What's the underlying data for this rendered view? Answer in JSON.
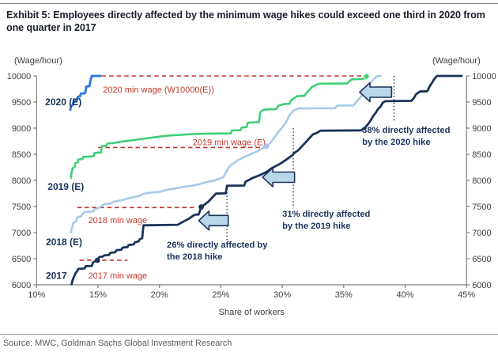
{
  "page": {
    "title": "Exhibit 5: Employees directly affected by the minimum wage hikes could exceed one third in 2020 from one quarter in 2017",
    "source": "Source: MWC, Goldman Sachs Global Investment Research"
  },
  "axes": {
    "left_title": "(Wage/hour)",
    "right_title": "(Wage/hour)",
    "x_title": "Share of workers",
    "y_ticks": [
      10000,
      9500,
      9000,
      8500,
      8000,
      7500,
      7000,
      6500,
      6000
    ],
    "x_ticks": [
      "10%",
      "15%",
      "20%",
      "25%",
      "30%",
      "35%",
      "40%",
      "45%"
    ],
    "x_range": [
      10,
      45
    ],
    "y_range": [
      6000,
      10000
    ],
    "grid": false
  },
  "colors": {
    "line_2020": "#2e7ce0",
    "line_2019": "#3ecf77",
    "line_2018": "#a6c9e8",
    "line_2017": "#1b3259",
    "min_wage_red": "#c0392b",
    "arrow_fill": "#b9d7ea",
    "axis_gray": "#7f7f7f",
    "tick_text": "#404040",
    "annotation_navy": "#1b3259"
  },
  "chart_data": {
    "type": "line",
    "x_unit": "share of workers (%)",
    "y_unit": "hourly wage (W, Korean won)",
    "series": [
      {
        "name": "2020 (E)",
        "color": "#2e7ce0",
        "width": 3,
        "label": {
          "text": "2020 (E)",
          "x": 10.7,
          "wage": 9440
        },
        "points": [
          [
            12.75,
            9350
          ],
          [
            12.8,
            9430
          ],
          [
            12.95,
            9440
          ],
          [
            13.0,
            9500
          ],
          [
            13.3,
            9540
          ],
          [
            13.35,
            9600
          ],
          [
            13.55,
            9610
          ],
          [
            13.6,
            9660
          ],
          [
            13.95,
            9670
          ],
          [
            14.0,
            9730
          ],
          [
            14.05,
            9795
          ],
          [
            14.3,
            9805
          ],
          [
            14.35,
            9865
          ],
          [
            14.4,
            9930
          ],
          [
            14.5,
            10000
          ],
          [
            15.2,
            10000
          ]
        ]
      },
      {
        "name": "2019 (E)",
        "color": "#3ecf77",
        "width": 2.6,
        "label": {
          "text": "2019 (E)",
          "x": 10.9,
          "wage": 7820
        },
        "points": [
          [
            12.8,
            8050
          ],
          [
            12.85,
            8160
          ],
          [
            12.95,
            8235
          ],
          [
            13.1,
            8255
          ],
          [
            13.15,
            8330
          ],
          [
            13.35,
            8345
          ],
          [
            13.4,
            8400
          ],
          [
            13.75,
            8410
          ],
          [
            13.8,
            8450
          ],
          [
            14.65,
            8460
          ],
          [
            14.7,
            8525
          ],
          [
            15.25,
            8535
          ],
          [
            15.3,
            8655
          ],
          [
            15.7,
            8665
          ],
          [
            15.75,
            8705
          ],
          [
            16.3,
            8715
          ],
          [
            16.7,
            8735
          ],
          [
            17.3,
            8755
          ],
          [
            18.0,
            8775
          ],
          [
            18.6,
            8795
          ],
          [
            19.3,
            8815
          ],
          [
            19.9,
            8835
          ],
          [
            20.6,
            8855
          ],
          [
            21.2,
            8865
          ],
          [
            21.9,
            8875
          ],
          [
            22.5,
            8885
          ],
          [
            24.0,
            8895
          ],
          [
            25.8,
            8900
          ],
          [
            25.9,
            8955
          ],
          [
            26.6,
            8962
          ],
          [
            26.7,
            9012
          ],
          [
            27.1,
            9020
          ],
          [
            27.2,
            9105
          ],
          [
            28.1,
            9115
          ],
          [
            28.2,
            9305
          ],
          [
            28.5,
            9355
          ],
          [
            29.5,
            9365
          ],
          [
            29.7,
            9432
          ],
          [
            30.1,
            9460
          ],
          [
            30.6,
            9467
          ],
          [
            30.7,
            9532
          ],
          [
            31.0,
            9580
          ],
          [
            31.2,
            9612
          ],
          [
            31.8,
            9618
          ],
          [
            32.0,
            9685
          ],
          [
            32.2,
            9732
          ],
          [
            32.4,
            9785
          ],
          [
            32.7,
            9822
          ],
          [
            33.0,
            9852
          ],
          [
            35.3,
            9857
          ],
          [
            35.5,
            9912
          ],
          [
            35.7,
            9937
          ],
          [
            36.6,
            9942
          ],
          [
            36.85,
            9990
          ]
        ]
      },
      {
        "name": "2018 (E)",
        "color": "#a6c9e8",
        "width": 2.6,
        "label": {
          "text": "2018 (E)",
          "x": 10.75,
          "wage": 6760
        },
        "points": [
          [
            12.8,
            7000
          ],
          [
            12.9,
            7112
          ],
          [
            13.0,
            7190
          ],
          [
            13.2,
            7212
          ],
          [
            13.3,
            7290
          ],
          [
            13.6,
            7312
          ],
          [
            13.9,
            7395
          ],
          [
            14.6,
            7405
          ],
          [
            14.7,
            7440
          ],
          [
            15.0,
            7470
          ],
          [
            15.25,
            7498
          ],
          [
            15.35,
            7518
          ],
          [
            15.5,
            7540
          ],
          [
            16.0,
            7556
          ],
          [
            16.3,
            7592
          ],
          [
            17.0,
            7622
          ],
          [
            17.6,
            7665
          ],
          [
            18.3,
            7697
          ],
          [
            18.7,
            7742
          ],
          [
            19.4,
            7770
          ],
          [
            20.0,
            7778
          ],
          [
            20.6,
            7820
          ],
          [
            21.3,
            7846
          ],
          [
            21.9,
            7872
          ],
          [
            22.6,
            7897
          ],
          [
            23.2,
            7922
          ],
          [
            23.9,
            7972
          ],
          [
            24.5,
            7997
          ],
          [
            25.2,
            8062
          ],
          [
            25.7,
            8272
          ],
          [
            26.0,
            8322
          ],
          [
            26.5,
            8402
          ],
          [
            27.0,
            8457
          ],
          [
            27.5,
            8507
          ],
          [
            28.0,
            8562
          ],
          [
            28.7,
            8652
          ],
          [
            29.0,
            8712
          ],
          [
            29.3,
            8802
          ],
          [
            29.6,
            8902
          ],
          [
            30.0,
            9012
          ],
          [
            30.3,
            9112
          ],
          [
            30.6,
            9252
          ],
          [
            30.9,
            9332
          ],
          [
            31.3,
            9377
          ],
          [
            34.3,
            9382
          ],
          [
            34.5,
            9432
          ],
          [
            35.8,
            9437
          ],
          [
            36.1,
            9522
          ],
          [
            36.4,
            9602
          ],
          [
            36.7,
            9702
          ],
          [
            37.0,
            9802
          ],
          [
            37.3,
            9902
          ],
          [
            37.7,
            9995
          ],
          [
            38.0,
            10000
          ]
        ]
      },
      {
        "name": "2017",
        "color": "#1b3259",
        "width": 2.8,
        "label": {
          "text": "2017",
          "x": 10.75,
          "wage": 6110
        },
        "points": [
          [
            12.85,
            6010
          ],
          [
            12.9,
            6062
          ],
          [
            13.0,
            6132
          ],
          [
            13.1,
            6182
          ],
          [
            13.2,
            6232
          ],
          [
            13.3,
            6262
          ],
          [
            13.4,
            6305
          ],
          [
            13.9,
            6312
          ],
          [
            14.0,
            6357
          ],
          [
            14.5,
            6362
          ],
          [
            14.6,
            6432
          ],
          [
            14.95,
            6470
          ],
          [
            15.1,
            6532
          ],
          [
            15.4,
            6542
          ],
          [
            15.5,
            6562
          ],
          [
            15.9,
            6572
          ],
          [
            16.0,
            6612
          ],
          [
            16.4,
            6622
          ],
          [
            16.5,
            6662
          ],
          [
            16.9,
            6672
          ],
          [
            17.0,
            6712
          ],
          [
            17.4,
            6722
          ],
          [
            17.5,
            6762
          ],
          [
            17.9,
            6772
          ],
          [
            18.0,
            6812
          ],
          [
            18.3,
            6832
          ],
          [
            18.4,
            6872
          ],
          [
            18.6,
            6892
          ],
          [
            18.7,
            7140
          ],
          [
            21.5,
            7150
          ],
          [
            21.6,
            7167
          ],
          [
            22.0,
            7217
          ],
          [
            22.4,
            7267
          ],
          [
            22.7,
            7317
          ],
          [
            22.9,
            7342
          ],
          [
            23.2,
            7347
          ],
          [
            23.4,
            7490
          ],
          [
            23.7,
            7542
          ],
          [
            24.0,
            7597
          ],
          [
            24.2,
            7647
          ],
          [
            24.4,
            7697
          ],
          [
            24.6,
            7747
          ],
          [
            25.4,
            7752
          ],
          [
            25.5,
            7897
          ],
          [
            26.9,
            7902
          ],
          [
            27.0,
            7972
          ],
          [
            27.6,
            8047
          ],
          [
            28.2,
            8102
          ],
          [
            28.8,
            8172
          ],
          [
            29.1,
            8227
          ],
          [
            29.5,
            8277
          ],
          [
            29.9,
            8327
          ],
          [
            30.2,
            8377
          ],
          [
            30.5,
            8427
          ],
          [
            30.8,
            8477
          ],
          [
            31.0,
            8527
          ],
          [
            31.3,
            8577
          ],
          [
            31.5,
            8627
          ],
          [
            31.7,
            8677
          ],
          [
            31.9,
            8727
          ],
          [
            32.1,
            8777
          ],
          [
            32.3,
            8832
          ],
          [
            32.5,
            8882
          ],
          [
            32.8,
            8907
          ],
          [
            33.1,
            8952
          ],
          [
            36.4,
            8957
          ],
          [
            36.7,
            9002
          ],
          [
            37.0,
            9082
          ],
          [
            37.2,
            9152
          ],
          [
            37.4,
            9232
          ],
          [
            37.6,
            9292
          ],
          [
            37.8,
            9367
          ],
          [
            38.0,
            9412
          ],
          [
            38.2,
            9492
          ],
          [
            38.4,
            9517
          ],
          [
            40.5,
            9522
          ],
          [
            40.7,
            9572
          ],
          [
            40.9,
            9652
          ],
          [
            41.2,
            9702
          ],
          [
            41.8,
            9707
          ],
          [
            42.0,
            9802
          ],
          [
            42.2,
            9872
          ],
          [
            42.4,
            9952
          ],
          [
            42.6,
            10000
          ],
          [
            44.6,
            10000
          ]
        ]
      }
    ],
    "min_wage_lines": [
      {
        "label": "2020 min wage (W10000(E))",
        "wage": 10000,
        "x1": 15.3,
        "x2": 36.8,
        "label_x": 15.4,
        "label_wage": 9680
      },
      {
        "label": "2019 min wage (E)",
        "wage": 8630,
        "x1": 15.0,
        "x2": 28.6,
        "label_x": 22.7,
        "label_wage": 8675
      },
      {
        "label": "2018 min wage",
        "wage": 7480,
        "x1": 13.3,
        "x2": 23.0,
        "label_x": 14.2,
        "label_wage": 7180
      },
      {
        "label": "2017 min wage",
        "wage": 6470,
        "x1": 13.5,
        "x2": 17.4,
        "label_x": 14.2,
        "label_wage": 6120
      }
    ],
    "markers": [
      {
        "x": 14.95,
        "wage": 6470,
        "shape": "dot",
        "color": "#1b3259"
      },
      {
        "x": 23.4,
        "wage": 7490,
        "shape": "dot",
        "color": "#1b3259"
      },
      {
        "x": 28.7,
        "wage": 8652,
        "shape": "dot",
        "color": "#a6c9e8"
      },
      {
        "x": 36.85,
        "wage": 9990,
        "shape": "diamond",
        "color": "#3ecf77"
      }
    ],
    "vlines": [
      {
        "x": 25.5,
        "wage_top": 7770,
        "wage_bottom": 6840
      },
      {
        "x": 30.9,
        "wage_top": 9000,
        "wage_bottom": 7465
      },
      {
        "x": 39.1,
        "wage_top": 10000,
        "wage_bottom": 9130
      }
    ],
    "arrows": [
      {
        "tip_x": 23.2,
        "tail_x": 25.6,
        "wage": 7230
      },
      {
        "tip_x": 28.4,
        "tail_x": 31.0,
        "wage": 8060
      },
      {
        "tip_x": 36.3,
        "tail_x": 38.9,
        "wage": 9690
      }
    ],
    "annotations": [
      {
        "lines": [
          "26% directly affected by",
          "the 2018 hike"
        ],
        "x": 20.6,
        "wage": 6710
      },
      {
        "lines": [
          "31% directly affected",
          "by the 2019 hike"
        ],
        "x": 30.0,
        "wage": 7300
      },
      {
        "lines": [
          "38% directly affected",
          "by the 2020 hike"
        ],
        "x": 36.5,
        "wage": 8910
      }
    ]
  }
}
